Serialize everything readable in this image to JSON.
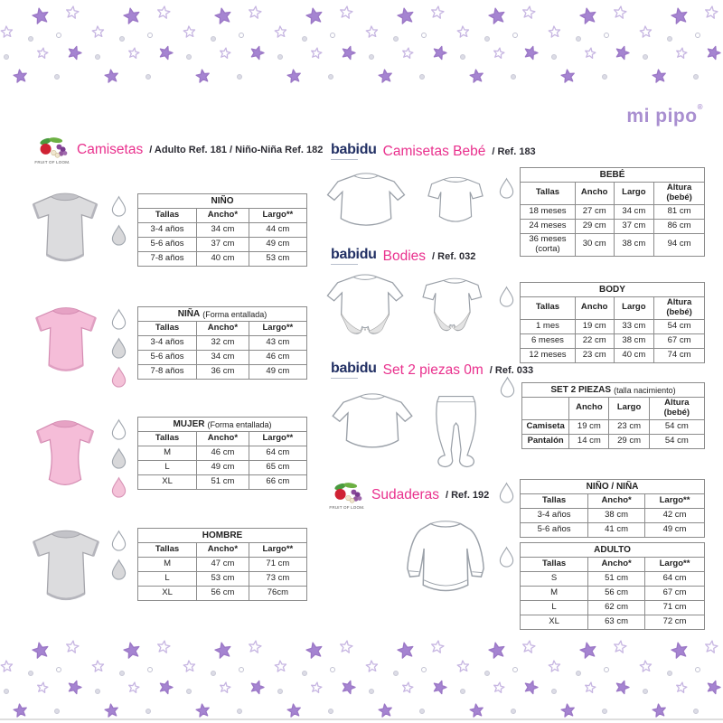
{
  "brand": {
    "name": "mi pipo",
    "reg": "®"
  },
  "logos": {
    "fruit_text": "FRUIT OF LOOM.",
    "babidu": "babidu"
  },
  "colors": {
    "purple_logo": "#a98fd0",
    "pink_title": "#e9308d",
    "babidu_navy": "#223064",
    "star_filled": "#a584d1",
    "star_filled_stroke": "#9b77c6",
    "star_outline": "#c7b6e2",
    "table_border": "#8b8b8b",
    "text_dark": "#222222",
    "tee_gray": "#dcdcde",
    "tee_pink": "#f5bdd8",
    "drop_gray": "#d8d8da",
    "drop_pink": "#f4c2d8"
  },
  "headers": {
    "camisetas": {
      "title": "Camisetas",
      "suffix": "/ Adulto Ref. 181 / Niño-Niña Ref. 182"
    },
    "camisetas_bebe": {
      "title": "Camisetas Bebé",
      "suffix": "/ Ref. 183"
    },
    "bodies": {
      "title": "Bodies",
      "suffix": "/ Ref. 032"
    },
    "set2": {
      "title": "Set 2 piezas 0m",
      "suffix": "/ Ref. 033"
    },
    "sudaderas": {
      "title": "Sudaderas",
      "suffix": "/ Ref. 192"
    }
  },
  "tables": [
    {
      "id": "nino",
      "title": "NIÑO",
      "subtitle": "",
      "columns": [
        "Tallas",
        "Ancho*",
        "Largo**"
      ],
      "rows": [
        [
          "3-4 años",
          "34 cm",
          "44 cm"
        ],
        [
          "5-6 años",
          "37 cm",
          "49 cm"
        ],
        [
          "7-8 años",
          "40 cm",
          "53 cm"
        ]
      ],
      "drops": [
        "white",
        "gray"
      ]
    },
    {
      "id": "nina",
      "title": "NIÑA",
      "subtitle": "(Forma entallada)",
      "columns": [
        "Tallas",
        "Ancho*",
        "Largo**"
      ],
      "rows": [
        [
          "3-4 años",
          "32 cm",
          "43 cm"
        ],
        [
          "5-6 años",
          "34 cm",
          "46 cm"
        ],
        [
          "7-8 años",
          "36 cm",
          "49 cm"
        ]
      ],
      "drops": [
        "white",
        "gray",
        "pink"
      ]
    },
    {
      "id": "mujer",
      "title": "MUJER",
      "subtitle": "(Forma entallada)",
      "columns": [
        "Tallas",
        "Ancho*",
        "Largo**"
      ],
      "rows": [
        [
          "M",
          "46 cm",
          "64 cm"
        ],
        [
          "L",
          "49 cm",
          "65 cm"
        ],
        [
          "XL",
          "51 cm",
          "66 cm"
        ]
      ],
      "drops": [
        "white",
        "gray",
        "pink"
      ]
    },
    {
      "id": "hombre",
      "title": "HOMBRE",
      "subtitle": "",
      "columns": [
        "Tallas",
        "Ancho*",
        "Largo**"
      ],
      "rows": [
        [
          "M",
          "47 cm",
          "71 cm"
        ],
        [
          "L",
          "53 cm",
          "73 cm"
        ],
        [
          "XL",
          "56 cm",
          "76cm"
        ]
      ],
      "drops": [
        "white",
        "gray"
      ]
    },
    {
      "id": "bebe",
      "title": "BEBÉ",
      "subtitle": "",
      "columns": [
        "Tallas",
        "Ancho",
        "Largo",
        "Altura (bebé)"
      ],
      "rows": [
        [
          "18 meses",
          "27 cm",
          "34 cm",
          "81 cm"
        ],
        [
          "24 meses",
          "29 cm",
          "37 cm",
          "86 cm"
        ],
        [
          "36 meses (corta)",
          "30 cm",
          "38 cm",
          "94 cm"
        ]
      ],
      "drops": [
        "white"
      ]
    },
    {
      "id": "body",
      "title": "BODY",
      "subtitle": "",
      "columns": [
        "Tallas",
        "Ancho",
        "Largo",
        "Altura (bebé)"
      ],
      "rows": [
        [
          "1 mes",
          "19 cm",
          "33 cm",
          "54 cm"
        ],
        [
          "6 meses",
          "22 cm",
          "38 cm",
          "67 cm"
        ],
        [
          "12 meses",
          "23 cm",
          "40 cm",
          "74 cm"
        ]
      ],
      "drops": [
        "white"
      ]
    },
    {
      "id": "set2",
      "title": "SET 2 PIEZAS",
      "subtitle": "(talla nacimiento)",
      "columns": [
        "",
        "Ancho",
        "Largo",
        "Altura (bebé)"
      ],
      "rows": [
        [
          "Camiseta",
          "19 cm",
          "23 cm",
          "54 cm"
        ],
        [
          "Pantalón",
          "14 cm",
          "29 cm",
          "54 cm"
        ]
      ],
      "drops": [
        "white"
      ],
      "bold_labels": true
    },
    {
      "id": "ninonina",
      "title": "NIÑO / NIÑA",
      "subtitle": "",
      "columns": [
        "Tallas",
        "Ancho*",
        "Largo**"
      ],
      "rows": [
        [
          "3-4 años",
          "38 cm",
          "42 cm"
        ],
        [
          "5-6 años",
          "41 cm",
          "49 cm"
        ]
      ],
      "drops": [
        "white"
      ]
    },
    {
      "id": "adulto",
      "title": "ADULTO",
      "subtitle": "",
      "columns": [
        "Tallas",
        "Ancho*",
        "Largo**"
      ],
      "rows": [
        [
          "S",
          "51 cm",
          "64 cm"
        ],
        [
          "M",
          "56 cm",
          "67 cm"
        ],
        [
          "L",
          "62 cm",
          "71 cm"
        ],
        [
          "XL",
          "63 cm",
          "72 cm"
        ]
      ],
      "drops": [
        "white"
      ]
    }
  ]
}
